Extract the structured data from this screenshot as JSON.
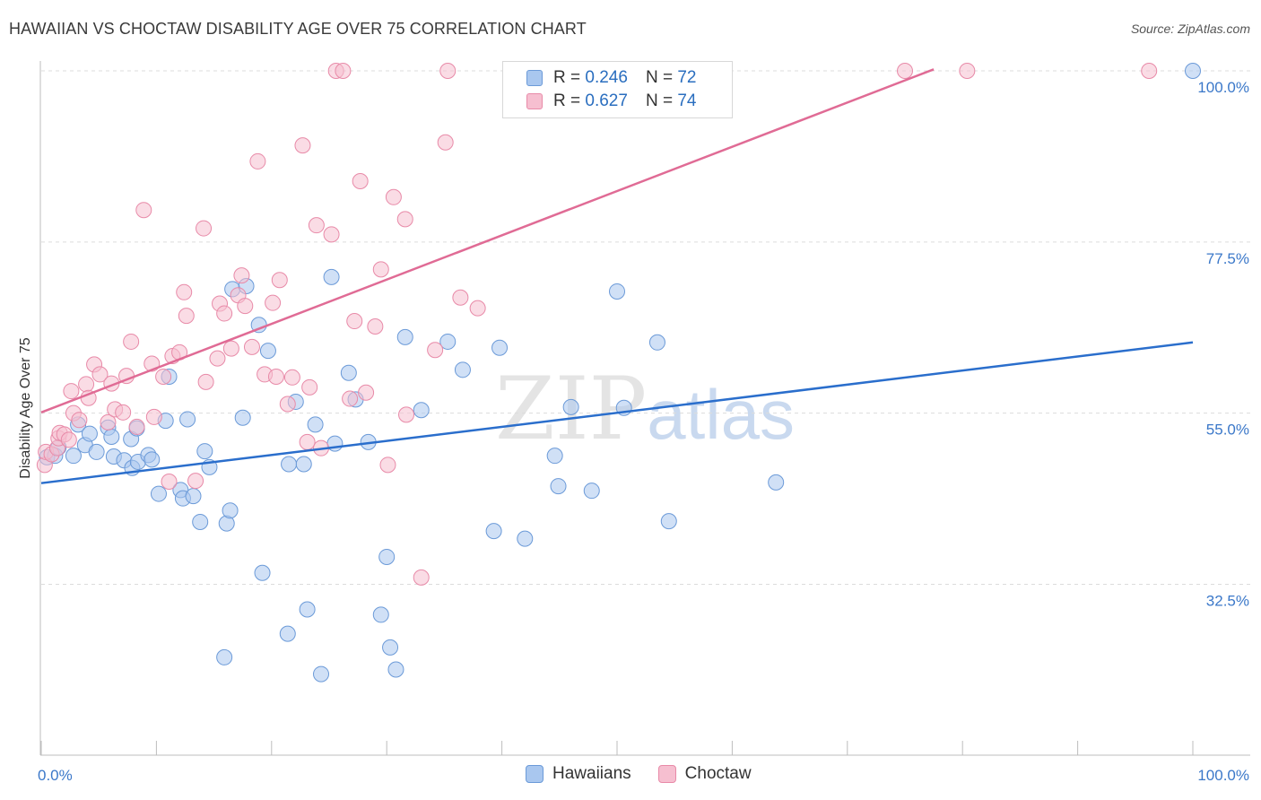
{
  "title": "HAWAIIAN VS CHOCTAW DISABILITY AGE OVER 75 CORRELATION CHART",
  "source": "Source: ZipAtlas.com",
  "watermark": {
    "zip": "ZIP",
    "atlas": "atlas"
  },
  "legend": {
    "rows": [
      {
        "r_label": "R =",
        "r_value": "0.246",
        "n_label": "N =",
        "n_value": "72",
        "color": "#a9c7ef",
        "border": "#6b9ad8"
      },
      {
        "r_label": "R =",
        "r_value": "0.627",
        "n_label": "N =",
        "n_value": "74",
        "color": "#f6bfd0",
        "border": "#e88aa8"
      }
    ]
  },
  "bottom_legend": [
    {
      "label": "Hawaiians",
      "color": "#a9c7ef",
      "border": "#6b9ad8"
    },
    {
      "label": "Choctaw",
      "color": "#f6bfd0",
      "border": "#e88aa8"
    }
  ],
  "chart_data": {
    "type": "scatter",
    "title": "HAWAIIAN VS CHOCTAW DISABILITY AGE OVER 75 CORRELATION CHART",
    "xlabel": "",
    "ylabel": "Disability Age Over 75",
    "xlim": [
      0,
      100
    ],
    "ylim": [
      12,
      103
    ],
    "x_tick_labels": [
      {
        "value": 0,
        "label": "0.0%"
      },
      {
        "value": 100,
        "label": "100.0%"
      }
    ],
    "y_tick_labels": [
      {
        "value": 100,
        "label": "100.0%"
      },
      {
        "value": 77.5,
        "label": "77.5%"
      },
      {
        "value": 55,
        "label": "55.0%"
      },
      {
        "value": 32.5,
        "label": "32.5%"
      }
    ],
    "x_minor_ticks": [
      0,
      10,
      20,
      30,
      40,
      50,
      60,
      70,
      80,
      90,
      100
    ],
    "grid": true,
    "series": [
      {
        "name": "Hawaiians",
        "color": "#6b9ad8",
        "fill": "#a9c7ef",
        "trend": {
          "x0": 0,
          "y0": 45.8,
          "x1": 100,
          "y1": 64.3,
          "color": "#2a6ecc"
        },
        "points": [
          [
            0.5,
            49.2
          ],
          [
            1.2,
            49.4
          ],
          [
            1.5,
            50.5
          ],
          [
            2.8,
            49.4
          ],
          [
            3.2,
            53.5
          ],
          [
            3.8,
            50.8
          ],
          [
            4.2,
            52.3
          ],
          [
            4.8,
            49.9
          ],
          [
            5.8,
            53.1
          ],
          [
            6.1,
            51.9
          ],
          [
            6.3,
            49.3
          ],
          [
            7.2,
            48.8
          ],
          [
            7.8,
            51.6
          ],
          [
            7.9,
            47.8
          ],
          [
            8.3,
            53.0
          ],
          [
            8.4,
            48.6
          ],
          [
            9.3,
            49.5
          ],
          [
            9.6,
            48.9
          ],
          [
            10.2,
            44.4
          ],
          [
            10.8,
            54.0
          ],
          [
            11.1,
            59.8
          ],
          [
            12.1,
            44.9
          ],
          [
            12.3,
            43.8
          ],
          [
            12.7,
            54.2
          ],
          [
            13.2,
            44.1
          ],
          [
            13.8,
            40.7
          ],
          [
            14.2,
            50.0
          ],
          [
            14.6,
            47.9
          ],
          [
            15.9,
            22.9
          ],
          [
            16.1,
            40.5
          ],
          [
            16.4,
            42.2
          ],
          [
            16.6,
            71.3
          ],
          [
            17.5,
            54.4
          ],
          [
            17.8,
            71.7
          ],
          [
            18.9,
            66.6
          ],
          [
            19.2,
            34.0
          ],
          [
            19.7,
            63.2
          ],
          [
            21.4,
            26.0
          ],
          [
            21.5,
            48.3
          ],
          [
            22.1,
            56.5
          ],
          [
            22.8,
            48.3
          ],
          [
            23.1,
            29.2
          ],
          [
            23.8,
            53.5
          ],
          [
            24.3,
            20.7
          ],
          [
            25.2,
            72.9
          ],
          [
            25.5,
            51.0
          ],
          [
            26.7,
            60.3
          ],
          [
            27.3,
            56.8
          ],
          [
            28.4,
            51.2
          ],
          [
            29.5,
            28.5
          ],
          [
            30.0,
            36.1
          ],
          [
            30.3,
            24.2
          ],
          [
            30.8,
            21.3
          ],
          [
            31.6,
            65.0
          ],
          [
            33.0,
            55.4
          ],
          [
            35.3,
            64.4
          ],
          [
            36.6,
            60.7
          ],
          [
            39.3,
            39.5
          ],
          [
            39.8,
            63.6
          ],
          [
            42.0,
            38.5
          ],
          [
            44.6,
            49.4
          ],
          [
            44.9,
            45.4
          ],
          [
            46.0,
            55.8
          ],
          [
            47.8,
            44.8
          ],
          [
            50.0,
            71.0
          ],
          [
            50.6,
            55.7
          ],
          [
            53.5,
            64.3
          ],
          [
            54.5,
            40.8
          ],
          [
            63.8,
            45.9
          ],
          [
            100,
            100
          ]
        ]
      },
      {
        "name": "Choctaw",
        "color": "#e88aa8",
        "fill": "#f6bfd0",
        "trend": {
          "x0": 0,
          "y0": 55.1,
          "x1": 77.5,
          "y1": 100.2,
          "color": "#e06b95"
        },
        "points": [
          [
            0.3,
            48.2
          ],
          [
            0.4,
            49.9
          ],
          [
            0.9,
            49.6
          ],
          [
            1.4,
            50.4
          ],
          [
            1.5,
            51.7
          ],
          [
            1.6,
            52.4
          ],
          [
            2.0,
            52.2
          ],
          [
            2.4,
            51.5
          ],
          [
            2.6,
            57.9
          ],
          [
            2.8,
            55.0
          ],
          [
            3.3,
            54.1
          ],
          [
            3.9,
            58.8
          ],
          [
            4.1,
            57.0
          ],
          [
            4.6,
            61.4
          ],
          [
            5.1,
            60.1
          ],
          [
            5.8,
            53.8
          ],
          [
            6.1,
            58.9
          ],
          [
            6.4,
            55.5
          ],
          [
            7.1,
            55.1
          ],
          [
            7.4,
            59.9
          ],
          [
            7.8,
            64.4
          ],
          [
            8.3,
            53.2
          ],
          [
            8.9,
            81.7
          ],
          [
            9.6,
            61.5
          ],
          [
            9.8,
            54.5
          ],
          [
            10.6,
            59.8
          ],
          [
            11.1,
            46.0
          ],
          [
            11.4,
            62.5
          ],
          [
            12.0,
            63.0
          ],
          [
            12.4,
            70.9
          ],
          [
            12.6,
            67.8
          ],
          [
            13.4,
            46.1
          ],
          [
            14.1,
            79.3
          ],
          [
            14.3,
            59.1
          ],
          [
            15.3,
            62.2
          ],
          [
            15.5,
            69.4
          ],
          [
            15.9,
            68.1
          ],
          [
            16.5,
            63.5
          ],
          [
            17.1,
            70.5
          ],
          [
            17.4,
            73.1
          ],
          [
            17.7,
            69.1
          ],
          [
            18.3,
            63.7
          ],
          [
            18.8,
            88.1
          ],
          [
            19.4,
            60.1
          ],
          [
            20.1,
            69.5
          ],
          [
            20.4,
            59.8
          ],
          [
            20.7,
            72.5
          ],
          [
            21.4,
            56.2
          ],
          [
            21.8,
            59.7
          ],
          [
            22.7,
            90.2
          ],
          [
            23.1,
            51.2
          ],
          [
            23.3,
            58.4
          ],
          [
            23.9,
            79.7
          ],
          [
            24.3,
            50.4
          ],
          [
            25.2,
            78.5
          ],
          [
            25.6,
            100
          ],
          [
            26.2,
            100
          ],
          [
            26.8,
            56.9
          ],
          [
            27.2,
            67.1
          ],
          [
            27.7,
            85.5
          ],
          [
            28.2,
            57.7
          ],
          [
            29.0,
            66.4
          ],
          [
            29.5,
            73.9
          ],
          [
            30.1,
            48.2
          ],
          [
            30.6,
            83.4
          ],
          [
            31.6,
            80.5
          ],
          [
            31.7,
            54.8
          ],
          [
            33.0,
            33.4
          ],
          [
            34.2,
            63.3
          ],
          [
            35.1,
            90.6
          ],
          [
            35.3,
            100
          ],
          [
            36.4,
            70.2
          ],
          [
            37.9,
            68.8
          ],
          [
            75.0,
            100
          ],
          [
            80.4,
            100
          ],
          [
            96.2,
            100
          ]
        ]
      }
    ]
  }
}
